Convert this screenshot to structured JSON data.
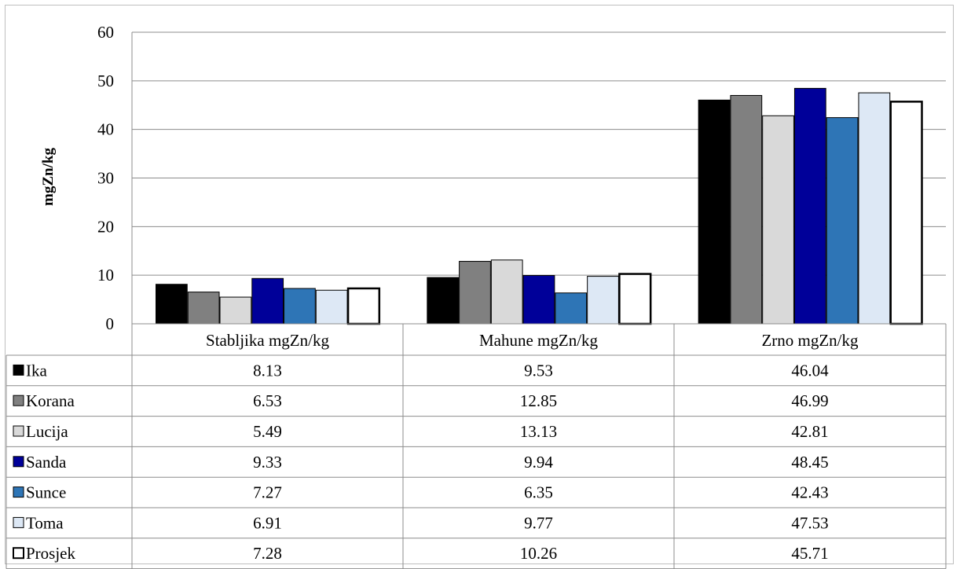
{
  "chart_data": {
    "type": "bar",
    "title": "",
    "xlabel": "",
    "ylabel": "mgZn/kg",
    "ylim": [
      0,
      60
    ],
    "yticks": [
      "0",
      "10",
      "20",
      "30",
      "40",
      "50",
      "60"
    ],
    "grid": true,
    "legend": "data-table",
    "categories": [
      "Stabljika mgZn/kg",
      "Mahune mgZn/kg",
      "Zrno mgZn/kg"
    ],
    "series": [
      {
        "name": "Ika",
        "color": "#000000",
        "values": [
          8.13,
          9.53,
          46.04
        ],
        "labels": [
          "8.13",
          "9.53",
          "46.04"
        ]
      },
      {
        "name": "Korana",
        "color": "#808080",
        "values": [
          6.53,
          12.85,
          46.99
        ],
        "labels": [
          "6.53",
          "12.85",
          "46.99"
        ]
      },
      {
        "name": "Lucija",
        "color": "#d9d9d9",
        "values": [
          5.49,
          13.13,
          42.81
        ],
        "labels": [
          "5.49",
          "13.13",
          "42.81"
        ]
      },
      {
        "name": "Sanda",
        "color": "#000099",
        "values": [
          9.33,
          9.94,
          48.45
        ],
        "labels": [
          "9.33",
          "9.94",
          "48.45"
        ]
      },
      {
        "name": "Sunce",
        "color": "#2e75b6",
        "values": [
          7.27,
          6.35,
          42.43
        ],
        "labels": [
          "7.27",
          "6.35",
          "42.43"
        ]
      },
      {
        "name": "Toma",
        "color": "#dde8f5",
        "values": [
          6.91,
          9.77,
          47.53
        ],
        "labels": [
          "6.91",
          "9.77",
          "47.53"
        ]
      },
      {
        "name": "Prosjek",
        "color": "#ffffff",
        "values": [
          7.28,
          10.26,
          45.71
        ],
        "labels": [
          "7.28",
          "10.26",
          "45.71"
        ]
      }
    ]
  }
}
